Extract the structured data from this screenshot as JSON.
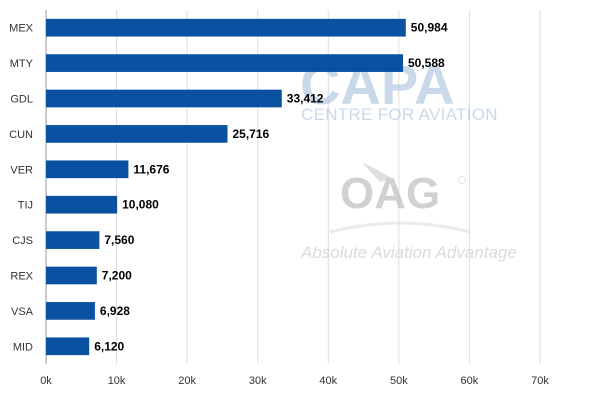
{
  "chart_data": {
    "type": "bar",
    "orientation": "horizontal",
    "title": "",
    "xlabel": "",
    "ylabel": "",
    "categories": [
      "MEX",
      "MTY",
      "GDL",
      "CUN",
      "VER",
      "TIJ",
      "CJS",
      "REX",
      "VSA",
      "MID"
    ],
    "values": [
      50984,
      50588,
      33412,
      25716,
      11676,
      10080,
      7560,
      7200,
      6928,
      6120
    ],
    "value_labels": [
      "50,984",
      "50,588",
      "33,412",
      "25,716",
      "11,676",
      "10,080",
      "7,560",
      "7,200",
      "6,928",
      "6,120"
    ],
    "xlim": [
      0,
      70000
    ],
    "xticks": [
      0,
      10000,
      20000,
      30000,
      40000,
      50000,
      60000,
      70000
    ],
    "xtick_labels": [
      "0k",
      "10k",
      "20k",
      "30k",
      "40k",
      "50k",
      "60k",
      "70k"
    ],
    "grid": true,
    "legend": "none",
    "bar_color": "#0a51a1"
  },
  "watermarks": {
    "capa_logo": "CAPA",
    "capa_tagline": "CENTRE FOR AVIATION",
    "oag_logo": "OAG",
    "oag_tagline": "Absolute Aviation Advantage"
  },
  "colors": {
    "grid": "#dddddd",
    "axis": "#999999"
  }
}
